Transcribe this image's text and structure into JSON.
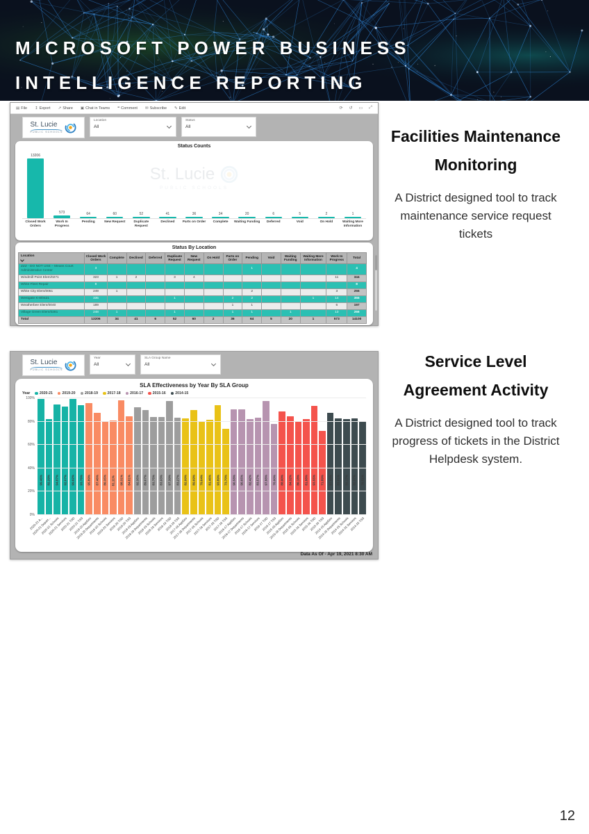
{
  "page": {
    "title_line1": "MICROSOFT POWER BUSINESS",
    "title_line2": "INTELLIGENCE REPORTING",
    "page_number": "12"
  },
  "dashboard1": {
    "toolbar": {
      "items": [
        {
          "name": "file",
          "icon": "▤",
          "label": "File"
        },
        {
          "name": "export",
          "icon": "↥",
          "label": "Export"
        },
        {
          "name": "share",
          "icon": "↗",
          "label": "Share"
        },
        {
          "name": "chat-in-teams",
          "icon": "▣",
          "label": "Chat in Teams"
        },
        {
          "name": "comment",
          "icon": "❝",
          "label": "Comment"
        },
        {
          "name": "subscribe",
          "icon": "✉",
          "label": "Subscribe"
        },
        {
          "name": "edit",
          "icon": "✎",
          "label": "Edit"
        }
      ],
      "right_icons": [
        {
          "name": "refresh",
          "icon": "⟳"
        },
        {
          "name": "reset",
          "icon": "↺"
        },
        {
          "name": "bookmark",
          "icon": "▭"
        },
        {
          "name": "full-screen",
          "icon": "⤢"
        }
      ]
    },
    "logo": {
      "name": "St. Lucie",
      "subtitle": "PUBLIC SCHOOLS"
    },
    "filters": [
      {
        "label": "Location",
        "value": "All"
      },
      {
        "label": "Status",
        "value": "All"
      }
    ],
    "watermark": {
      "line1": "St. Lucie",
      "line2": "PUBLIC SCHOOLS"
    }
  },
  "dashboard2": {
    "logo": {
      "name": "St. Lucie",
      "subtitle": "PUBLIC SCHOOLS"
    },
    "filters": [
      {
        "label": "Year",
        "value": "All"
      },
      {
        "label": "SLA Group Name",
        "value": "All"
      }
    ],
    "footer": "Data As Of - Apr 19, 2021 8:30 AM"
  },
  "section1_text": {
    "heading": "Facilities Maintenance Monitoring",
    "body": "A District designed tool to track maintenance service request tickets"
  },
  "section2_text": {
    "heading": "Service Level Agreement Activity",
    "body": "A District designed tool to track progress of tickets in the District Helpdesk system."
  },
  "chart_data": [
    {
      "type": "bar",
      "title": "Status Counts",
      "categories": [
        "Closed Work Orders",
        "Work In Progress",
        "Pending",
        "New Request",
        "Duplicate Request",
        "Declined",
        "Parts on Order",
        "Complete",
        "Waiting Funding",
        "Deferred",
        "Void",
        "On Hold",
        "Waiting More Information"
      ],
      "values": [
        13206,
        573,
        64,
        60,
        52,
        41,
        36,
        34,
        20,
        6,
        5,
        2,
        1
      ],
      "bar_color": "#17b8ab",
      "ylim": [
        0,
        13206
      ],
      "grid": false,
      "legend_position": "none"
    },
    {
      "type": "table",
      "title": "Status By Location",
      "highlight_color": "#2bc0b3",
      "columns": [
        "Location",
        "Closed Work Orders",
        "Complete",
        "Declined",
        "Deferred",
        "Duplicate Request",
        "New Request",
        "On Hold",
        "Parts on Order",
        "Pending",
        "Void",
        "Waiting Funding",
        "Waiting More Information",
        "Work In Progress",
        "Total"
      ],
      "rows": [
        {
          "highlight": true,
          "cells": [
            "ZZZ - DO NOT USE – Means Court Administrative Center",
            "3",
            "",
            "",
            "",
            "",
            "",
            "",
            "",
            "1",
            "",
            "",
            "",
            "",
            "4"
          ]
        },
        {
          "highlight": false,
          "cells": [
            "Windmill Point Elem/0271",
            "323",
            "1",
            "2",
            "",
            "3",
            "4",
            "",
            "",
            "",
            "",
            "",
            "",
            "11",
            "344"
          ]
        },
        {
          "highlight": true,
          "cells": [
            "White Fleet Repair",
            "8",
            "",
            "",
            "",
            "",
            "",
            "",
            "",
            "",
            "",
            "",
            "",
            "",
            "8"
          ]
        },
        {
          "highlight": false,
          "cells": [
            "White City Elem/0051",
            "249",
            "1",
            "",
            "",
            "",
            "",
            "",
            "",
            "2",
            "",
            "",
            "",
            "3",
            "255"
          ]
        },
        {
          "highlight": true,
          "cells": [
            "Westgate K-8/0421",
            "335",
            "",
            "",
            "",
            "1",
            "",
            "",
            "2",
            "2",
            "",
            "",
            "1",
            "14",
            "355"
          ]
        },
        {
          "highlight": false,
          "cells": [
            "Weatherbee Elem/0040",
            "189",
            "",
            "",
            "",
            "",
            "",
            "",
            "1",
            "1",
            "",
            "",
            "",
            "6",
            "197"
          ]
        },
        {
          "highlight": true,
          "cells": [
            "Village Green Elem/0281",
            "248",
            "1",
            "",
            "",
            "1",
            "",
            "",
            "1",
            "1",
            "",
            "1",
            "",
            "13",
            "266"
          ]
        }
      ],
      "total_row": [
        "Total",
        "13206",
        "34",
        "41",
        "6",
        "52",
        "60",
        "2",
        "36",
        "64",
        "5",
        "20",
        "1",
        "573",
        "14100"
      ]
    },
    {
      "type": "bar",
      "title": "SLA Effectiveness by Year By SLA Group",
      "legend_label": "Year",
      "legend_position": "top-left",
      "ylim": [
        0,
        100
      ],
      "yticks": [
        "100%",
        "80%",
        "60%",
        "40%",
        "20%",
        "0%"
      ],
      "grid": true,
      "footer": "Data As Of - Apr 19, 2021 8:30 AM",
      "series": [
        {
          "name": "2020-21",
          "color": "#16b3a6",
          "bars": [
            {
              "label": "2020-21 A...",
              "value": 99.46
            },
            {
              "label": "2020-21 Depart...",
              "value": 82.29
            },
            {
              "label": "2020-21 Schools",
              "value": 94.87
            },
            {
              "label": "2020-21 Services",
              "value": 92.67
            },
            {
              "label": "2020-21 TSD",
              "value": 99.62
            },
            {
              "label": "2020-21 TSS",
              "value": 93.76
            }
          ]
        },
        {
          "name": "2019-20",
          "color": "#f98b63",
          "bars": [
            {
              "label": "2019-20 AppDev",
              "value": 95.89
            },
            {
              "label": "2019-20 Departments",
              "value": 87.46
            },
            {
              "label": "2019-20 Schools",
              "value": 80.35
            },
            {
              "label": "2019-20 Services",
              "value": 81.11
            },
            {
              "label": "2019-20 TSD",
              "value": 98.31
            },
            {
              "label": "2019-20 TSS",
              "value": 84.81
            }
          ]
        },
        {
          "name": "2018-19",
          "color": "#9d9d9d",
          "bars": [
            {
              "label": "2018-19 AppDev",
              "value": 92.35
            },
            {
              "label": "2018-19 Departments",
              "value": 89.67
            },
            {
              "label": "2018-19 Schools",
              "value": 83.75
            },
            {
              "label": "2018-19 Services",
              "value": 83.93
            },
            {
              "label": "2018-19 TSD",
              "value": 97.39
            },
            {
              "label": "2018-19 TSS",
              "value": 83.27
            }
          ]
        },
        {
          "name": "2017-18",
          "color": "#e9c217",
          "bars": [
            {
              "label": "2017-18 AppDev",
              "value": 82.99
            },
            {
              "label": "2017-18 Departments",
              "value": 89.69
            },
            {
              "label": "2017-18 Schools",
              "value": 79.64
            },
            {
              "label": "2017-18 Services",
              "value": 81.46
            },
            {
              "label": "2017-18 TSD",
              "value": 93.89
            },
            {
              "label": "2017-18 TSS",
              "value": 73.7
            }
          ]
        },
        {
          "name": "2016-17",
          "color": "#b794b0",
          "bars": [
            {
              "label": "2016-17 AppDev",
              "value": 90.58
            },
            {
              "label": "2016-17 Departments",
              "value": 90.65
            },
            {
              "label": "2016-17 Schools",
              "value": 82.42
            },
            {
              "label": "2016-17 Services",
              "value": 83.57
            },
            {
              "label": "2016-17 TSD",
              "value": 97.88
            },
            {
              "label": "2016-17 TSS",
              "value": 78.0
            }
          ]
        },
        {
          "name": "2015-16",
          "color": "#f4534c",
          "bars": [
            {
              "label": "2015-16 AppDev",
              "value": 88.9
            },
            {
              "label": "2015-16 Departments",
              "value": 84.32
            },
            {
              "label": "2015-16 Schools",
              "value": 80.18
            },
            {
              "label": "2015-16 Services",
              "value": 81.88
            },
            {
              "label": "2015-16 TSD",
              "value": 93.55
            },
            {
              "label": "2015-16 TSS",
              "value": 71.89
            }
          ]
        },
        {
          "name": "2014-15",
          "color": "#3d4b4f",
          "bars": [
            {
              "label": "2014-15 AppDev",
              "value": 87.68
            },
            {
              "label": "2014-15 Departments",
              "value": 83.01
            },
            {
              "label": "2014-15 Schools",
              "value": 82.17
            },
            {
              "label": "2014-15 Services",
              "value": 82.97
            },
            {
              "label": "2014-15 TSS",
              "value": 79.51
            }
          ]
        }
      ]
    }
  ]
}
